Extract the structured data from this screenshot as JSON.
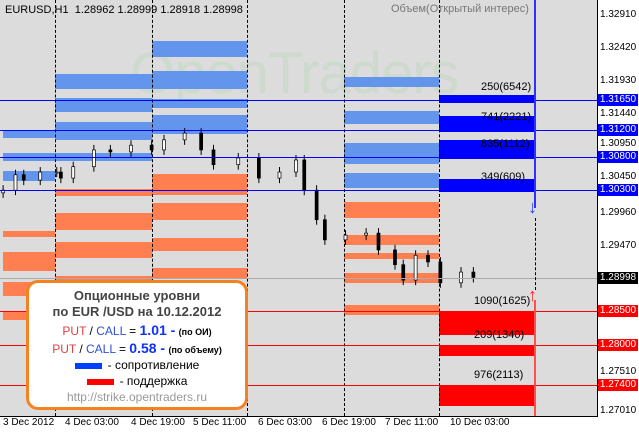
{
  "header": {
    "symbol": "EURUSD,H1",
    "ohlc": "1.28962 1.28999 1.28918 1.28998",
    "indicator": "Объем(Открытый интерес)"
  },
  "watermark": "OpenTraders",
  "colors": {
    "resistance": "#6495ed",
    "support": "#ff7f50",
    "resistance_strong": "#0000ff",
    "support_strong": "#ff0000",
    "background": "#dcdcdc"
  },
  "chart_data": {
    "type": "candlestick",
    "symbol": "EURUSD",
    "timeframe": "H1",
    "ylim": [
      1.2701,
      1.3291
    ],
    "y_ticks": [
      "1.32910",
      "1.32420",
      "1.31930",
      "1.31440",
      "1.30950",
      "1.30450",
      "1.29960",
      "1.29470",
      "1.27510",
      "1.27010"
    ],
    "x_ticks": [
      "3 Dec 2012",
      "4 Dec 03:00",
      "4 Dec 19:00",
      "5 Dec 11:00",
      "6 Dec 03:00",
      "6 Dec 19:00",
      "7 Dec 11:00",
      "10 Dec 03:00"
    ],
    "current_price": "1.28998",
    "close_series": [
      [
        "3 Dec 12:00",
        1.303
      ],
      [
        "3 Dec 15:00",
        1.3053
      ],
      [
        "3 Dec 17:00",
        1.3045
      ],
      [
        "3 Dec 21:00",
        1.3057
      ],
      [
        "4 Dec 01:00",
        1.3057
      ],
      [
        "4 Dec 02:00",
        1.3048
      ],
      [
        "4 Dec 05:00",
        1.3065
      ],
      [
        "4 Dec 10:00",
        1.309
      ],
      [
        "4 Dec 14:00",
        1.3087
      ],
      [
        "4 Dec 19:00",
        1.3097
      ],
      [
        "5 Dec 00:00",
        1.309
      ],
      [
        "5 Dec 03:00",
        1.3105
      ],
      [
        "5 Dec 08:00",
        1.3115
      ],
      [
        "5 Dec 12:00",
        1.309
      ],
      [
        "5 Dec 15:00",
        1.3068
      ],
      [
        "5 Dec 21:00",
        1.3078
      ],
      [
        "6 Dec 02:00",
        1.3048
      ],
      [
        "6 Dec 07:00",
        1.3057
      ],
      [
        "6 Dec 11:00",
        1.3075
      ],
      [
        "6 Dec 13:00",
        1.303
      ],
      [
        "6 Dec 16:00",
        1.2986
      ],
      [
        "6 Dec 18:00",
        1.2956
      ],
      [
        "6 Dec 23:00",
        1.2963
      ],
      [
        "7 Dec 04:00",
        1.2966
      ],
      [
        "7 Dec 07:00",
        1.2941
      ],
      [
        "7 Dec 11:00",
        1.2919
      ],
      [
        "7 Dec 13:00",
        1.2896
      ],
      [
        "7 Dec 16:00",
        1.2933
      ],
      [
        "7 Dec 19:00",
        1.2923
      ],
      [
        "7 Dec 22:00",
        1.2892
      ],
      [
        "10 Dec 03:00",
        1.2908
      ],
      [
        "10 Dec 06:00",
        1.29
      ]
    ],
    "resistance_levels": [
      {
        "price": "1.31650",
        "label": "250(6542)"
      },
      {
        "price": "1.31200",
        "label": "741(2221)"
      },
      {
        "price": "1.30800",
        "label": "835(1112)"
      },
      {
        "price": "1.30300",
        "label": "349(609)"
      }
    ],
    "support_levels": [
      {
        "price": "1.28500",
        "label": "1090(1625)"
      },
      {
        "price": "1.28000",
        "label": "209(1340)"
      },
      {
        "price": "1.27400",
        "label": "976(2113)"
      }
    ]
  },
  "info": {
    "title1": "Опционные уровни",
    "title2": "по EUR /USD на 10.12.2012",
    "put": "PUT",
    "slash": "/",
    "call": "CALL",
    "eq": "=",
    "ratio_oi": "1.01 -",
    "ratio_oi_note": "(по ОИ)",
    "ratio_vol": "0.58 -",
    "ratio_vol_note": "(по объему)",
    "legend_resistance": "- сопротивление",
    "legend_support": "- поддержка",
    "url": "http://strike.opentraders.ru"
  }
}
